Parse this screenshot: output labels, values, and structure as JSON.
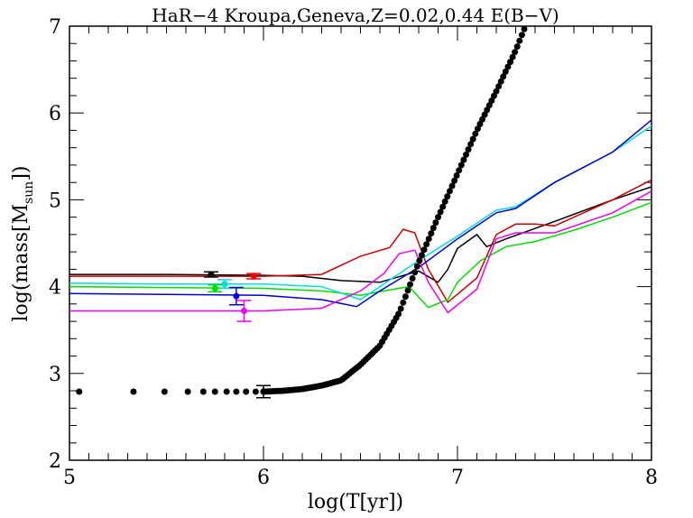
{
  "chart_data": {
    "type": "line",
    "title": "HaR−4 Kroupa,Geneva,Z=0.02,0.44 E(B−V)",
    "xlabel": "log(T[yr])",
    "ylabel_main": "log(mass[M",
    "ylabel_sub": "sun",
    "ylabel_end": "])",
    "xlim": [
      5,
      8
    ],
    "ylim": [
      2,
      7
    ],
    "xticks": [
      "5",
      "6",
      "7",
      "8"
    ],
    "yticks": [
      "2",
      "3",
      "4",
      "5",
      "6",
      "7"
    ],
    "grid": false,
    "series": [
      {
        "color": "#000000",
        "points": [
          [
            5.0,
            4.14
          ],
          [
            5.5,
            4.14
          ],
          [
            6.0,
            4.13
          ],
          [
            6.2,
            4.12
          ],
          [
            6.4,
            4.07
          ],
          [
            6.6,
            4.05
          ],
          [
            6.8,
            4.18
          ],
          [
            6.9,
            4.05
          ],
          [
            6.95,
            4.2
          ],
          [
            7.0,
            4.44
          ],
          [
            7.1,
            4.6
          ],
          [
            7.15,
            4.46
          ],
          [
            7.25,
            4.55
          ],
          [
            7.5,
            4.75
          ],
          [
            7.8,
            5.0
          ],
          [
            8.0,
            5.15
          ]
        ]
      },
      {
        "color": "#cc0000",
        "points": [
          [
            5.0,
            4.12
          ],
          [
            5.5,
            4.12
          ],
          [
            6.0,
            4.12
          ],
          [
            6.3,
            4.14
          ],
          [
            6.5,
            4.35
          ],
          [
            6.65,
            4.45
          ],
          [
            6.72,
            4.66
          ],
          [
            6.78,
            4.62
          ],
          [
            6.85,
            4.2
          ],
          [
            6.95,
            3.82
          ],
          [
            7.1,
            4.1
          ],
          [
            7.2,
            4.6
          ],
          [
            7.3,
            4.72
          ],
          [
            7.4,
            4.72
          ],
          [
            7.5,
            4.7
          ],
          [
            7.8,
            5.0
          ],
          [
            8.0,
            5.23
          ]
        ]
      },
      {
        "color": "#00dd00",
        "points": [
          [
            5.0,
            4.0
          ],
          [
            5.5,
            3.99
          ],
          [
            6.0,
            3.98
          ],
          [
            6.3,
            3.95
          ],
          [
            6.5,
            3.9
          ],
          [
            6.62,
            3.95
          ],
          [
            6.75,
            4.0
          ],
          [
            6.85,
            3.76
          ],
          [
            6.95,
            3.85
          ],
          [
            7.0,
            4.05
          ],
          [
            7.12,
            4.3
          ],
          [
            7.25,
            4.46
          ],
          [
            7.4,
            4.52
          ],
          [
            7.6,
            4.65
          ],
          [
            7.8,
            4.8
          ],
          [
            8.0,
            4.97
          ]
        ]
      },
      {
        "color": "#00dddd",
        "points": [
          [
            5.0,
            4.04
          ],
          [
            5.5,
            4.03
          ],
          [
            6.0,
            4.03
          ],
          [
            6.3,
            4.0
          ],
          [
            6.5,
            3.85
          ],
          [
            6.6,
            4.0
          ],
          [
            6.7,
            4.15
          ],
          [
            6.8,
            4.3
          ],
          [
            7.0,
            4.58
          ],
          [
            7.2,
            4.88
          ],
          [
            7.3,
            4.92
          ],
          [
            7.5,
            5.2
          ],
          [
            7.8,
            5.55
          ],
          [
            8.0,
            5.85
          ]
        ]
      },
      {
        "color": "#0000cc",
        "points": [
          [
            5.0,
            3.92
          ],
          [
            5.5,
            3.91
          ],
          [
            6.0,
            3.9
          ],
          [
            6.3,
            3.85
          ],
          [
            6.48,
            3.77
          ],
          [
            6.6,
            3.95
          ],
          [
            6.8,
            4.22
          ],
          [
            7.0,
            4.55
          ],
          [
            7.2,
            4.85
          ],
          [
            7.3,
            4.9
          ],
          [
            7.5,
            5.2
          ],
          [
            7.8,
            5.55
          ],
          [
            8.0,
            5.92
          ]
        ]
      },
      {
        "color": "#ee00ee",
        "points": [
          [
            5.0,
            3.72
          ],
          [
            5.5,
            3.72
          ],
          [
            6.0,
            3.72
          ],
          [
            6.3,
            3.75
          ],
          [
            6.5,
            3.95
          ],
          [
            6.62,
            4.15
          ],
          [
            6.7,
            4.38
          ],
          [
            6.78,
            4.42
          ],
          [
            6.85,
            4.05
          ],
          [
            6.95,
            3.7
          ],
          [
            7.1,
            3.97
          ],
          [
            7.2,
            4.55
          ],
          [
            7.3,
            4.62
          ],
          [
            7.5,
            4.62
          ],
          [
            7.8,
            4.85
          ],
          [
            8.0,
            5.1
          ]
        ]
      }
    ],
    "data_points": [
      {
        "x": 5.73,
        "y": 4.14,
        "yerr": 0.03,
        "color": "#000000"
      },
      {
        "x": 5.95,
        "y": 4.12,
        "yerr": 0.03,
        "color": "#ee0000"
      },
      {
        "x": 5.8,
        "y": 4.03,
        "yerr": 0.05,
        "color": "#00dddd"
      },
      {
        "x": 5.75,
        "y": 3.98,
        "yerr": 0.04,
        "color": "#00dd00"
      },
      {
        "x": 5.86,
        "y": 3.89,
        "yerr": 0.1,
        "color": "#0000ee"
      },
      {
        "x": 5.9,
        "y": 3.72,
        "yerr": 0.12,
        "color": "#ee00ee"
      },
      {
        "x": 6.0,
        "y": 2.79,
        "yerr": 0.07,
        "color": "#000000"
      }
    ]
  }
}
